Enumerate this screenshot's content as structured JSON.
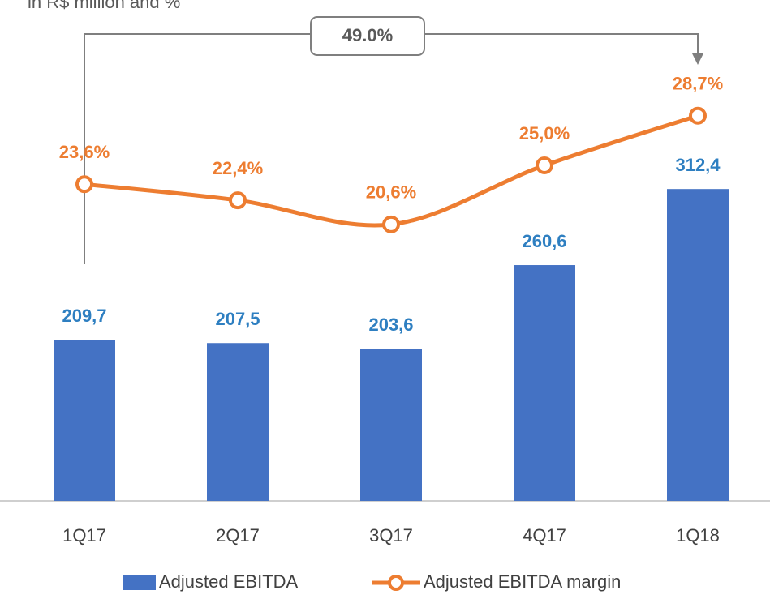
{
  "chart_data": {
    "type": "bar",
    "subtitle": "in R$ million and %",
    "annotation": "49.0%",
    "categories": [
      "1Q17",
      "2Q17",
      "3Q17",
      "4Q17",
      "1Q18"
    ],
    "series": [
      {
        "name": "Adjusted EBITDA",
        "type": "bar",
        "color": "#4472c4",
        "label_color": "#2e7fc1",
        "values": [
          209.7,
          207.5,
          203.6,
          260.6,
          312.4
        ],
        "value_labels": [
          "209,7",
          "207,5",
          "203,6",
          "260,6",
          "312,4"
        ]
      },
      {
        "name": "Adjusted EBITDA margin",
        "type": "line",
        "axis": "y2",
        "color": "#ed7d31",
        "label_color": "#ed7d31",
        "values": [
          23.6,
          22.4,
          20.6,
          25.0,
          28.7
        ],
        "value_labels": [
          "23,6%",
          "22,4%",
          "20,6%",
          "25,0%",
          "28,7%"
        ]
      }
    ],
    "ylim": [
      100,
      440
    ],
    "y2lim": [
      0,
      37.2
    ],
    "grid": false
  }
}
